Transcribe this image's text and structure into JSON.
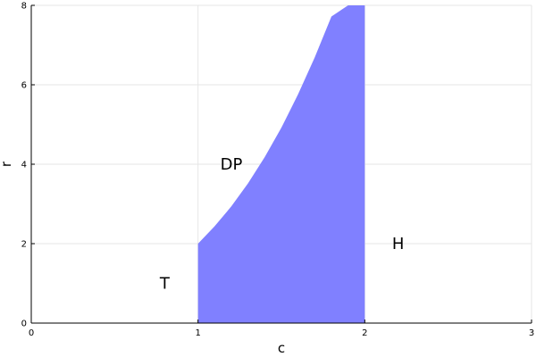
{
  "chart_data": {
    "type": "area",
    "title": "",
    "xlabel": "c",
    "ylabel": "r",
    "xlim": [
      0,
      3
    ],
    "ylim": [
      0,
      8
    ],
    "xticks": [
      0,
      1,
      2,
      3
    ],
    "yticks": [
      0,
      2,
      4,
      6,
      8
    ],
    "grid": true,
    "legend": "none",
    "series": [
      {
        "fill_color": "#8080ff",
        "x": [
          1.0,
          1.1,
          1.2,
          1.3,
          1.4,
          1.5,
          1.6,
          1.7,
          1.8,
          1.9,
          2.0
        ],
        "y_lower": [
          0,
          0,
          0,
          0,
          0,
          0,
          0,
          0,
          0,
          0,
          0
        ],
        "y_upper": [
          2.0,
          2.44,
          2.94,
          3.52,
          4.18,
          4.92,
          5.76,
          6.69,
          7.72,
          8.86,
          8.0
        ]
      }
    ],
    "annotations": [
      {
        "text": "T",
        "x": 0.8,
        "y": 1.0
      },
      {
        "text": "DP",
        "x": 1.2,
        "y": 4.0
      },
      {
        "text": "H",
        "x": 2.2,
        "y": 2.0
      }
    ]
  }
}
